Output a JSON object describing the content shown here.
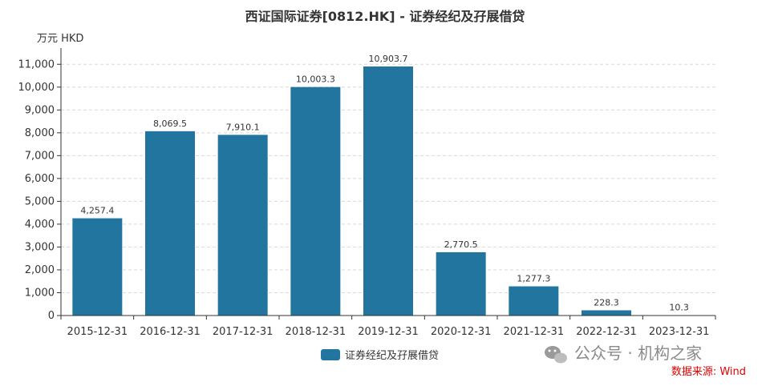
{
  "chart_data": {
    "type": "bar",
    "title": "西证国际证券[0812.HK] - 证券经纪及孖展借贷",
    "unit_label": "万元  HKD",
    "categories": [
      "2015-12-31",
      "2016-12-31",
      "2017-12-31",
      "2018-12-31",
      "2019-12-31",
      "2020-12-31",
      "2021-12-31",
      "2022-12-31",
      "2023-12-31"
    ],
    "series": [
      {
        "name": "证券经纪及孖展借贷",
        "values": [
          4257.4,
          8069.5,
          7910.1,
          10003.3,
          10903.7,
          2770.5,
          1277.3,
          228.3,
          10.3
        ],
        "value_labels": [
          "4,257.4",
          "8,069.5",
          "7,910.1",
          "10,003.3",
          "10,903.7",
          "2,770.5",
          "1,277.3",
          "228.3",
          "10.3"
        ],
        "color": "#21759f"
      }
    ],
    "ylim": [
      0,
      11500
    ],
    "yticks": [
      0,
      1000,
      2000,
      3000,
      4000,
      5000,
      6000,
      7000,
      8000,
      9000,
      10000,
      11000
    ],
    "ytick_labels": [
      "0",
      "1,000",
      "2,000",
      "3,000",
      "4,000",
      "5,000",
      "6,000",
      "7,000",
      "8,000",
      "9,000",
      "10,000",
      "11,000"
    ],
    "grid": true,
    "legend_position": "bottom-center"
  },
  "footer": {
    "watermark": "公众号 · 机构之家",
    "watermark_icon": "wechat-icon",
    "source": "数据来源: Wind"
  },
  "colors": {
    "bar": "#21759f",
    "source_text": "#e00000"
  }
}
